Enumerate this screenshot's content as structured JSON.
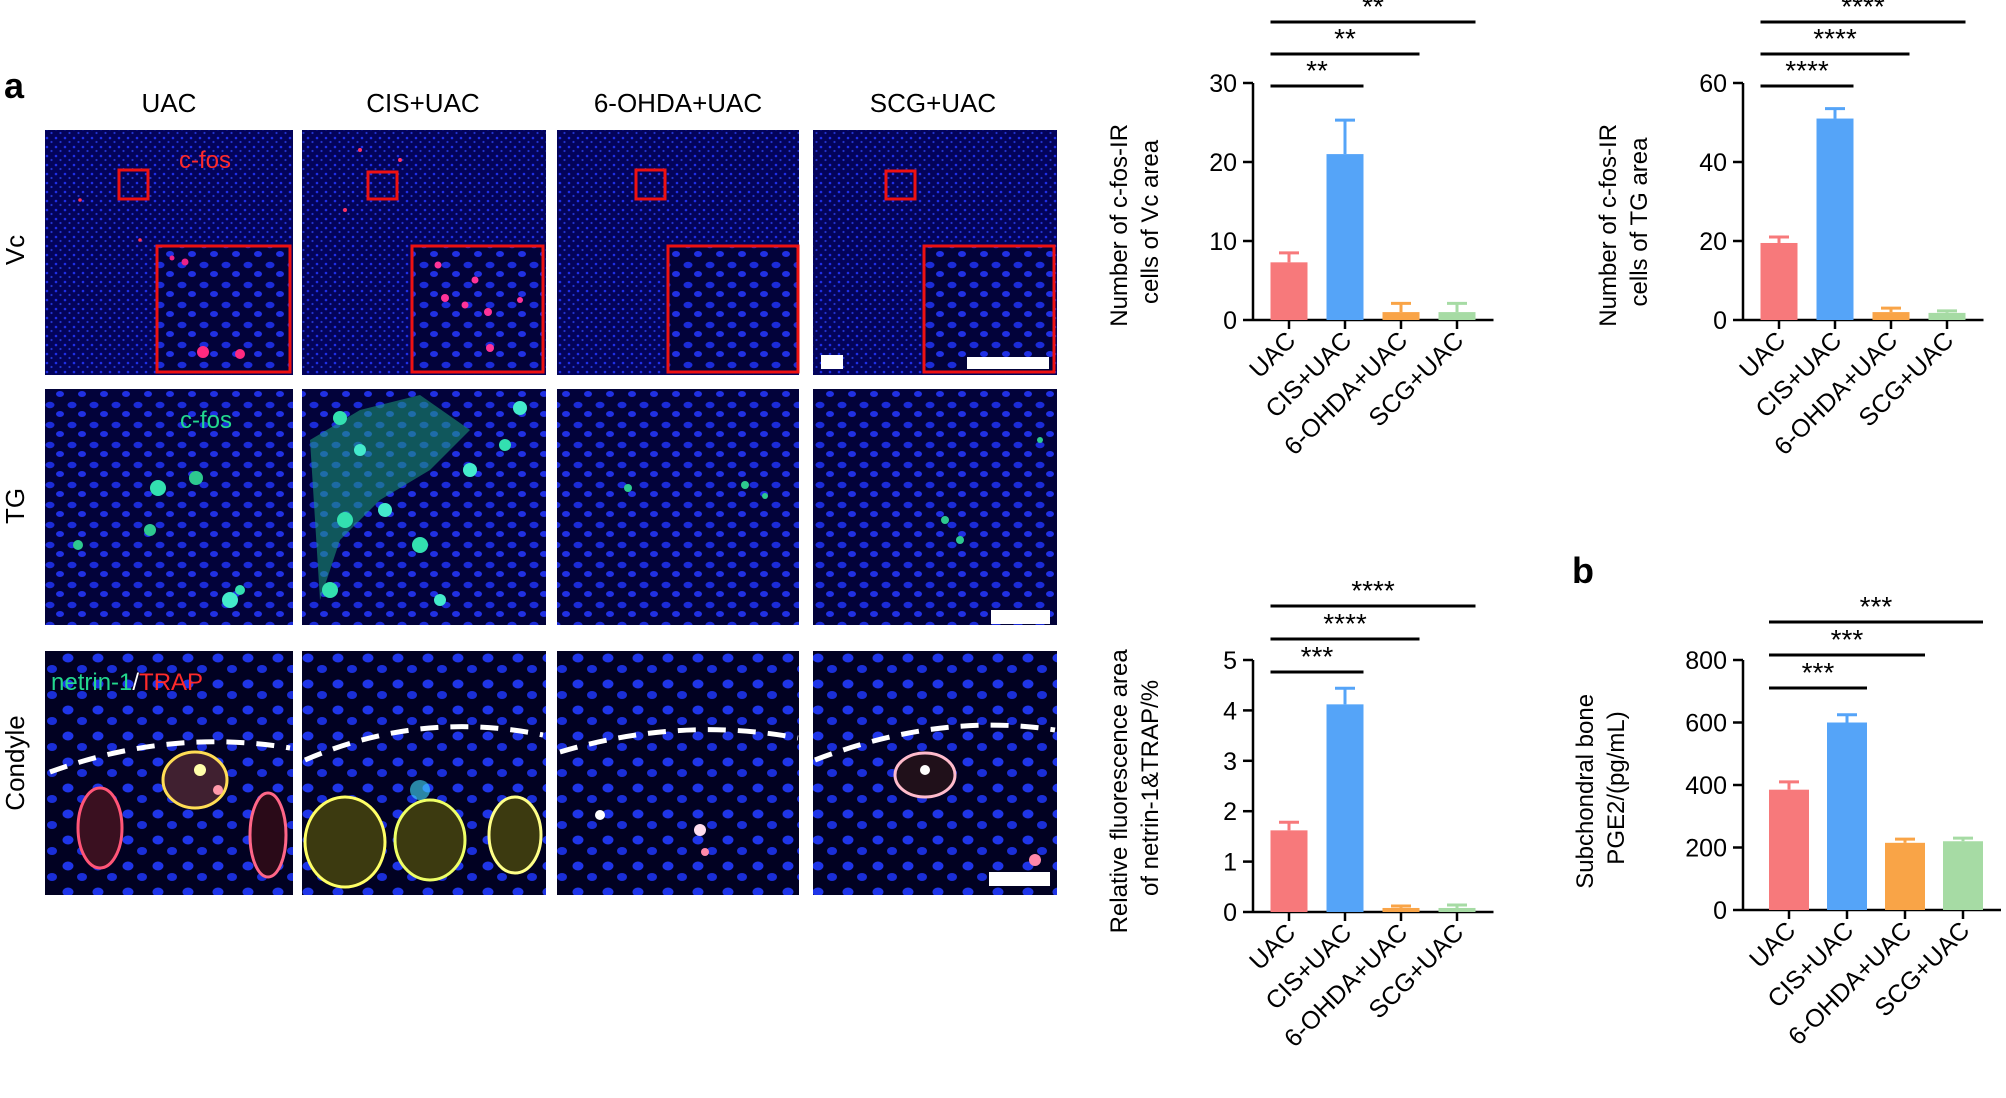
{
  "figure": {
    "panel_a_label": "a",
    "panel_b_label": "b",
    "column_headers": [
      "UAC",
      "CIS+UAC",
      "6-OHDA+UAC",
      "SCG+UAC"
    ],
    "row_labels": [
      "Vc",
      "TG",
      "Condyle"
    ],
    "stain_labels": {
      "vc": "c-fos",
      "tg": "c-fos",
      "condyle_green": "netrin-1",
      "condyle_sep": "/",
      "condyle_red": "TRAP"
    }
  },
  "colors": {
    "uac": "#F7797B",
    "cis_uac": "#55A4F8",
    "ohda_uac": "#F9A447",
    "scg_uac": "#A6DBA4",
    "error_bar": "#000000",
    "micrograph_bg": "#03035a",
    "nuclei": "#1f2fe6",
    "red_stain": "#ff2a55",
    "green_stain": "#33e0a0",
    "yellow_stain": "#f0f060"
  },
  "chart_data": [
    {
      "id": "vc",
      "type": "bar",
      "categories": [
        "UAC",
        "CIS+UAC",
        "6-OHDA+UAC",
        "SCG+UAC"
      ],
      "values": [
        7.3,
        21.0,
        1.0,
        1.0
      ],
      "errors": [
        1.2,
        4.3,
        1.1,
        1.1
      ],
      "ylabel_lines": [
        "Number of c-fos-IR",
        "cells of Vc area"
      ],
      "ylim": [
        0,
        30
      ],
      "yticks": [
        0,
        10,
        20,
        30
      ],
      "significance": [
        {
          "from": 0,
          "to": 1,
          "label": "**"
        },
        {
          "from": 0,
          "to": 2,
          "label": "**"
        },
        {
          "from": 0,
          "to": 3,
          "label": "**"
        }
      ]
    },
    {
      "id": "tg",
      "type": "bar",
      "categories": [
        "UAC",
        "CIS+UAC",
        "6-OHDA+UAC",
        "SCG+UAC"
      ],
      "values": [
        19.5,
        51.0,
        2.0,
        1.8
      ],
      "errors": [
        1.5,
        2.5,
        1.0,
        0.5
      ],
      "ylabel_lines": [
        "Number of c-fos-IR",
        "cells of TG area"
      ],
      "ylim": [
        0,
        60
      ],
      "yticks": [
        0,
        20,
        40,
        60
      ],
      "significance": [
        {
          "from": 0,
          "to": 1,
          "label": "****"
        },
        {
          "from": 0,
          "to": 2,
          "label": "****"
        },
        {
          "from": 0,
          "to": 3,
          "label": "****"
        }
      ]
    },
    {
      "id": "netrin",
      "type": "bar",
      "categories": [
        "UAC",
        "CIS+UAC",
        "6-OHDA+UAC",
        "SCG+UAC"
      ],
      "values": [
        1.62,
        4.12,
        0.08,
        0.08
      ],
      "errors": [
        0.16,
        0.32,
        0.04,
        0.06
      ],
      "ylabel_lines": [
        "Relative fluorescence area",
        "of netrin-1&TRAP/%"
      ],
      "ylim": [
        0,
        5
      ],
      "yticks": [
        0,
        1,
        2,
        3,
        4,
        5
      ],
      "significance": [
        {
          "from": 0,
          "to": 1,
          "label": "***"
        },
        {
          "from": 0,
          "to": 2,
          "label": "****"
        },
        {
          "from": 0,
          "to": 3,
          "label": "****"
        }
      ]
    },
    {
      "id": "pge2",
      "type": "bar",
      "categories": [
        "UAC",
        "CIS+UAC",
        "6-OHDA+UAC",
        "SCG+UAC"
      ],
      "values": [
        385,
        600,
        215,
        220
      ],
      "errors": [
        25,
        25,
        12,
        10
      ],
      "ylabel_lines": [
        "Subchondral bone",
        "PGE2/(pg/mL)"
      ],
      "ylim": [
        0,
        800
      ],
      "yticks": [
        0,
        200,
        400,
        600,
        800
      ],
      "significance": [
        {
          "from": 0,
          "to": 1,
          "label": "***"
        },
        {
          "from": 0,
          "to": 2,
          "label": "***"
        },
        {
          "from": 0,
          "to": 3,
          "label": "***"
        }
      ]
    }
  ]
}
